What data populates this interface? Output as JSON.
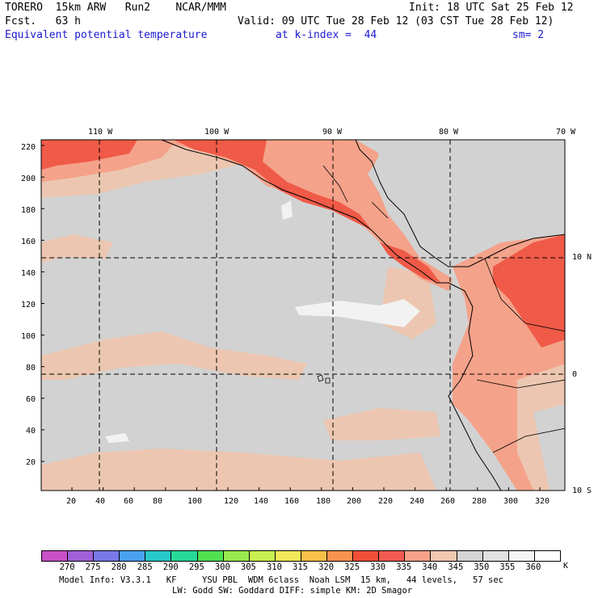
{
  "header": {
    "model": "TORERO  15km ARW   Run2    NCAR/MMM",
    "init": "Init: 18 UTC Sat 25 Feb 12",
    "fcst": "Fcst.   63 h",
    "valid": "Valid: 09 UTC Tue 28 Feb 12 (03 CST Tue 28 Feb 12)",
    "field": "Equivalent potential temperature",
    "level": "at k-index =  44",
    "smooth": "sm= 2"
  },
  "map": {
    "lon_labels": [
      "110 W",
      "100 W",
      "90 W",
      "80 W",
      "70 W"
    ],
    "lat_labels": [
      "10 N",
      "0",
      "10 S"
    ],
    "y_ticks": [
      "220",
      "200",
      "180",
      "160",
      "140",
      "120",
      "100",
      "80",
      "60",
      "40",
      "20"
    ],
    "x_ticks": [
      "20",
      "40",
      "60",
      "80",
      "100",
      "120",
      "140",
      "160",
      "180",
      "200",
      "220",
      "240",
      "260",
      "280",
      "300",
      "320"
    ],
    "grid_x_extent": [
      1,
      335
    ],
    "grid_y_extent": [
      1,
      222
    ]
  },
  "colorbar": {
    "labels": [
      "270",
      "275",
      "280",
      "285",
      "290",
      "295",
      "300",
      "305",
      "310",
      "315",
      "320",
      "325",
      "330",
      "335",
      "340",
      "345",
      "350",
      "355",
      "360"
    ],
    "unit": "K",
    "colors": [
      "#c850c8",
      "#a060d8",
      "#7878e8",
      "#4aa0ee",
      "#28c8c8",
      "#28d898",
      "#50e050",
      "#98e850",
      "#c8f050",
      "#f0e858",
      "#f8c048",
      "#f89050",
      "#f05038",
      "#f05a50",
      "#f8a088",
      "#f0c8b0",
      "#d4d4d4",
      "#e0e0e0",
      "#f4f4f4",
      "#ffffff"
    ]
  },
  "footer": {
    "line1": "Model Info: V3.3.1   KF     YSU PBL  WDM 6class  Noah LSM  15 km,   44 levels,   57 sec",
    "line2": "LW: Godd SW: Goddard DIFF: simple KM: 2D Smagor"
  }
}
